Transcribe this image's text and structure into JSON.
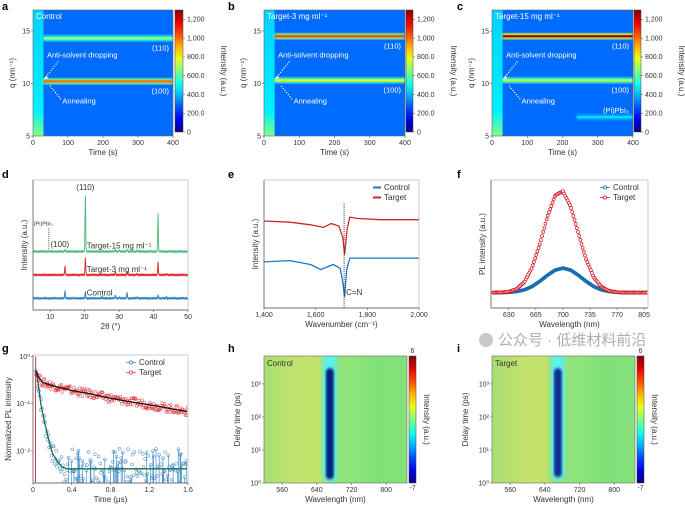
{
  "figure": {
    "watermark": "公众号 · 低维材料前沿"
  },
  "chart_data": [
    {
      "panel": "a",
      "type": "heatmap",
      "title": "Control",
      "xlabel": "Time (s)",
      "ylabel": "q (nm⁻¹)",
      "xlim": [
        0,
        400
      ],
      "ylim": [
        5,
        17
      ],
      "xticks": [
        0,
        100,
        200,
        300,
        400
      ],
      "xtick_labels": [
        "0",
        "100",
        "200",
        "300",
        "400"
      ],
      "yticks": [
        5,
        10,
        15
      ],
      "ytick_labels": [
        "5",
        "10",
        "15"
      ],
      "colorbar": {
        "label": "Intensity (a.u.)",
        "range": [
          0,
          1300
        ],
        "ticks": [
          0,
          200,
          400,
          600,
          800,
          1000,
          1200
        ],
        "tick_labels": [
          "0",
          "200.0",
          "400.0",
          "600.0",
          "800.0",
          "1,000",
          "1,200"
        ],
        "colormap": "jet"
      },
      "background_intensity": 300,
      "features": [
        {
          "label": "(110)",
          "q": 14.3,
          "t_start": 30,
          "intensity": 700
        },
        {
          "label": "(100)",
          "q": 10.2,
          "t_start": 30,
          "intensity": 1000
        }
      ],
      "annotations": [
        "Anti-solvent dropping",
        "Annealing"
      ]
    },
    {
      "panel": "b",
      "type": "heatmap",
      "title": "Target-3 mg ml⁻¹",
      "xlabel": "Time (s)",
      "ylabel": "q (nm⁻¹)",
      "xlim": [
        0,
        400
      ],
      "ylim": [
        5,
        17
      ],
      "xticks": [
        0,
        100,
        200,
        300,
        400
      ],
      "xtick_labels": [
        "0",
        "100",
        "200",
        "300",
        "400"
      ],
      "yticks": [
        5,
        10,
        15
      ],
      "ytick_labels": [
        "5",
        "10",
        "15"
      ],
      "colorbar": {
        "label": "Intensity (a.u.)",
        "range": [
          0,
          1300
        ],
        "ticks": [
          0,
          200,
          400,
          600,
          800,
          1000,
          1200
        ],
        "tick_labels": [
          "0",
          "200.0",
          "400.0",
          "600.0",
          "800.0",
          "1,000",
          "1,200"
        ],
        "colormap": "jet"
      },
      "background_intensity": 300,
      "features": [
        {
          "label": "(110)",
          "q": 14.5,
          "t_start": 30,
          "intensity": 1050
        },
        {
          "label": "(100)",
          "q": 10.3,
          "t_start": 30,
          "intensity": 800
        }
      ],
      "annotations": [
        "Anti-solvent dropping",
        "Annealing"
      ]
    },
    {
      "panel": "c",
      "type": "heatmap",
      "title": "Target-15 mg ml⁻¹",
      "xlabel": "Time (s)",
      "ylabel": "q (nm⁻¹)",
      "xlim": [
        0,
        400
      ],
      "ylim": [
        5,
        17
      ],
      "xticks": [
        0,
        100,
        200,
        300,
        400
      ],
      "xtick_labels": [
        "0",
        "100",
        "200",
        "300",
        "400"
      ],
      "yticks": [
        5,
        10,
        15
      ],
      "ytick_labels": [
        "5",
        "10",
        "15"
      ],
      "colorbar": {
        "label": "Intensity (a.u.)",
        "range": [
          0,
          1300
        ],
        "ticks": [
          0,
          200,
          400,
          600,
          800,
          1000,
          1200
        ],
        "tick_labels": [
          "0",
          "200.0",
          "400.0",
          "600.0",
          "800.0",
          "1,000",
          "1,200"
        ],
        "colormap": "jet"
      },
      "background_intensity": 300,
      "features": [
        {
          "label": "(110)",
          "q": 14.5,
          "t_start": 30,
          "intensity": 1250
        },
        {
          "label": "(100)",
          "q": 10.3,
          "t_start": 30,
          "intensity": 750
        },
        {
          "label": "(Pi)PbI₃",
          "q": 6.8,
          "t_start": 240,
          "intensity": 450
        }
      ],
      "annotations": [
        "Anti-solvent dropping",
        "Annealing"
      ]
    },
    {
      "panel": "d",
      "type": "line",
      "xlabel": "2θ (°)",
      "ylabel": "Intensity (a.u.)",
      "xlim": [
        5,
        50
      ],
      "ylim": [
        0,
        1
      ],
      "xticks": [
        10,
        20,
        30,
        40,
        50
      ],
      "xtick_labels": [
        "10",
        "20",
        "30",
        "40",
        "50"
      ],
      "series": [
        {
          "name": "Control",
          "color": "#2a7fc0",
          "offset": 0.09,
          "peaks": [
            [
              14.3,
              0.06
            ],
            [
              20.2,
              0.05
            ],
            [
              25.0,
              0.01
            ],
            [
              28.9,
              0.025
            ],
            [
              30.1,
              0.01
            ],
            [
              32.3,
              0.045
            ],
            [
              35.3,
              0.01
            ],
            [
              41.3,
              0.025
            ],
            [
              43.8,
              0.01
            ]
          ]
        },
        {
          "name": "Target-3 mg ml⁻¹",
          "color": "#e0262b",
          "offset": 0.27,
          "peaks": [
            [
              14.3,
              0.07
            ],
            [
              20.2,
              0.13
            ],
            [
              28.9,
              0.025
            ],
            [
              32.3,
              0.025
            ],
            [
              35.2,
              0.01
            ],
            [
              41.3,
              0.1
            ],
            [
              43.8,
              0.01
            ]
          ]
        },
        {
          "name": "Target-15 mg ml⁻¹",
          "color": "#4cba7c",
          "offset": 0.45,
          "peaks": [
            [
              9.6,
              0.005
            ],
            [
              14.3,
              0.015
            ],
            [
              20.2,
              0.43
            ],
            [
              28.9,
              0.015
            ],
            [
              30.1,
              0.01
            ],
            [
              32.3,
              0.015
            ],
            [
              35.2,
              0.01
            ],
            [
              41.3,
              0.29
            ]
          ]
        }
      ],
      "annotations": [
        "(110)",
        "(100)",
        "(Pi)PbI₃"
      ]
    },
    {
      "panel": "e",
      "type": "line",
      "xlabel": "Wavenumber (cm⁻¹)",
      "ylabel": "Intensity (a.u.)",
      "xlim": [
        1400,
        2000
      ],
      "ylim": [
        0,
        1
      ],
      "xticks": [
        1400,
        1600,
        1800,
        2000
      ],
      "xtick_labels": [
        "1,400",
        "1,600",
        "1,800",
        "2,000"
      ],
      "legend": "top-right",
      "series": [
        {
          "name": "Control",
          "color": "#1f77c4",
          "x": [
            1400,
            1500,
            1580,
            1620,
            1668,
            1695,
            1705,
            1712,
            1720,
            1732,
            1800,
            2000
          ],
          "y": [
            0.36,
            0.37,
            0.34,
            0.3,
            0.34,
            0.31,
            0.2,
            0.09,
            0.3,
            0.39,
            0.39,
            0.39
          ]
        },
        {
          "name": "Target",
          "color": "#d62728",
          "x": [
            1400,
            1500,
            1580,
            1630,
            1660,
            1690,
            1705,
            1712,
            1722,
            1732,
            1760,
            1850,
            2000
          ],
          "y": [
            0.68,
            0.67,
            0.65,
            0.63,
            0.66,
            0.64,
            0.55,
            0.42,
            0.62,
            0.71,
            0.7,
            0.69,
            0.69
          ]
        }
      ],
      "annotation": {
        "label": "C=N",
        "x": 1710
      }
    },
    {
      "panel": "f",
      "type": "scatter",
      "xlabel": "Wavelength (nm)",
      "ylabel": "PL intensity (a.u.)",
      "xlim": [
        607,
        810
      ],
      "ylim": [
        -0.15,
        1.1
      ],
      "xticks": [
        630,
        665,
        700,
        735,
        770,
        805
      ],
      "xtick_labels": [
        "630",
        "665",
        "700",
        "735",
        "770",
        "805"
      ],
      "legend": "top-right",
      "x": [
        610,
        620,
        630,
        640,
        650,
        660,
        670,
        680,
        690,
        700,
        710,
        720,
        730,
        740,
        750,
        760,
        770,
        780,
        790,
        800,
        810
      ],
      "series": [
        {
          "name": "Control",
          "color": "#1a6faf",
          "y": [
            0.0002,
            0.0009,
            0.0034,
            0.011,
            0.027,
            0.06,
            0.11,
            0.17,
            0.22,
            0.24,
            0.22,
            0.17,
            0.11,
            0.06,
            0.027,
            0.011,
            0.0034,
            0.0009,
            0.0002,
            0,
            0
          ]
        },
        {
          "name": "Target",
          "color": "#d0111b",
          "y": [
            0.0004,
            0.0022,
            0.0097,
            0.035,
            0.102,
            0.243,
            0.471,
            0.742,
            0.951,
            0.991,
            0.84,
            0.579,
            0.325,
            0.148,
            0.055,
            0.0166,
            0.004,
            0.0008,
            0,
            0,
            0
          ]
        }
      ]
    },
    {
      "panel": "g",
      "type": "scatter",
      "xlabel": "Time (μs)",
      "ylabel": "Normalized PL intensity",
      "yscale": "log",
      "xlim": [
        0,
        1.6
      ],
      "ylim": [
        0.0021,
        1.07
      ],
      "xticks": [
        0,
        0.4,
        0.8,
        1.2,
        1.6
      ],
      "xtick_labels": [
        "0",
        "0.4",
        "0.8",
        "1.2",
        "1.6"
      ],
      "yticks": [
        1,
        0.1,
        0.01
      ],
      "ytick_labels": [
        "10⁰",
        "10⁻¹",
        "10⁻²"
      ],
      "legend": "top-right",
      "series": [
        {
          "name": "Control",
          "color": "#2a7fc0",
          "fit_color": "#1d6b4f",
          "x": [
            0.03,
            0.05,
            0.08,
            0.12,
            0.16,
            0.2,
            0.25,
            0.3,
            0.35,
            0.5,
            0.8,
            1.2,
            1.6
          ],
          "y": [
            0.5,
            0.3,
            0.1,
            0.04,
            0.018,
            0.009,
            0.006,
            0.0046,
            0.0042,
            0.0042,
            0.0042,
            0.0042,
            0.0042
          ]
        },
        {
          "name": "Target",
          "color": "#e0262b",
          "fit_color": "#111111",
          "x": [
            0.03,
            0.05,
            0.1,
            0.2,
            0.4,
            0.6,
            0.8,
            1.0,
            1.2,
            1.4,
            1.6
          ],
          "y": [
            0.5,
            0.38,
            0.28,
            0.24,
            0.19,
            0.16,
            0.13,
            0.11,
            0.095,
            0.08,
            0.068
          ]
        }
      ]
    },
    {
      "panel": "h",
      "type": "heatmap",
      "title": "Control",
      "xlabel": "Wavelength (nm)",
      "ylabel": "Delay time (ps)",
      "yscale": "log",
      "xlim": [
        518,
        848
      ],
      "ylim": [
        1,
        7000
      ],
      "xticks": [
        560,
        640,
        720,
        800
      ],
      "xtick_labels": [
        "560",
        "640",
        "720",
        "800"
      ],
      "yticks": [
        1,
        10,
        100,
        1000
      ],
      "ytick_labels": [
        "10⁰",
        "10¹",
        "10²",
        "10³"
      ],
      "colorbar": {
        "label": "Intensity (a.u.)",
        "range": [
          -7,
          6
        ],
        "tick_labels": [
          "6",
          "-7"
        ],
        "colormap": "jet"
      },
      "bleach": {
        "wavelength": 670,
        "delay_range": [
          1.3,
          3000
        ],
        "min_intensity": -7
      }
    },
    {
      "panel": "i",
      "type": "heatmap",
      "title": "Target",
      "xlabel": "Wavelength (nm)",
      "ylabel": "Delay time (ps)",
      "yscale": "log",
      "xlim": [
        518,
        848
      ],
      "ylim": [
        1,
        7000
      ],
      "xticks": [
        560,
        640,
        720,
        800
      ],
      "xtick_labels": [
        "560",
        "640",
        "720",
        "800"
      ],
      "yticks": [
        1,
        10,
        100,
        1000
      ],
      "ytick_labels": [
        "10⁰",
        "10¹",
        "10²",
        "10³"
      ],
      "colorbar": {
        "label": "Intensity (a.u.)",
        "range": [
          -7,
          6
        ],
        "tick_labels": [
          "6",
          "-7"
        ],
        "colormap": "jet"
      },
      "bleach": {
        "wavelength": 670,
        "delay_range": [
          1.5,
          3000
        ],
        "min_intensity": -6
      }
    }
  ]
}
